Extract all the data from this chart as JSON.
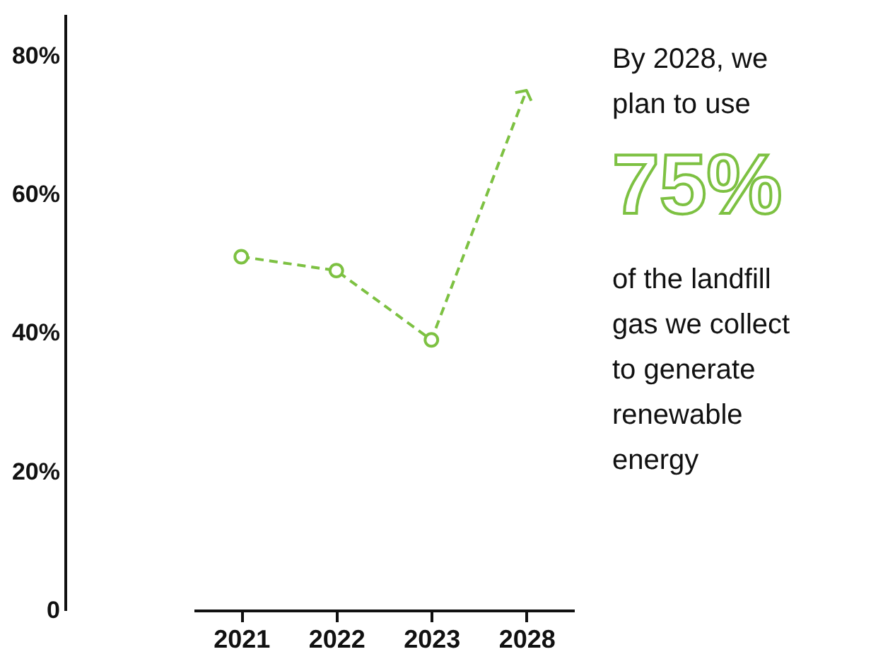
{
  "chart_data": {
    "type": "line",
    "categories": [
      "2021",
      "2022",
      "2023",
      "2028"
    ],
    "series": [
      {
        "color": "#7dc142",
        "values": [
          51,
          49,
          39,
          75
        ]
      }
    ],
    "ylim": [
      0,
      86
    ],
    "yticks": [
      {
        "value": 0,
        "label": "0"
      },
      {
        "value": 20,
        "label": "20%"
      },
      {
        "value": 40,
        "label": "40%"
      },
      {
        "value": 60,
        "label": "60%"
      },
      {
        "value": 80,
        "label": "80%"
      }
    ],
    "grid": false,
    "marker": "circle",
    "line_style": "dashed",
    "annotations": [
      "By 2028, we plan to use",
      "75%",
      "of the landfill gas we collect to generate renewable energy"
    ]
  }
}
